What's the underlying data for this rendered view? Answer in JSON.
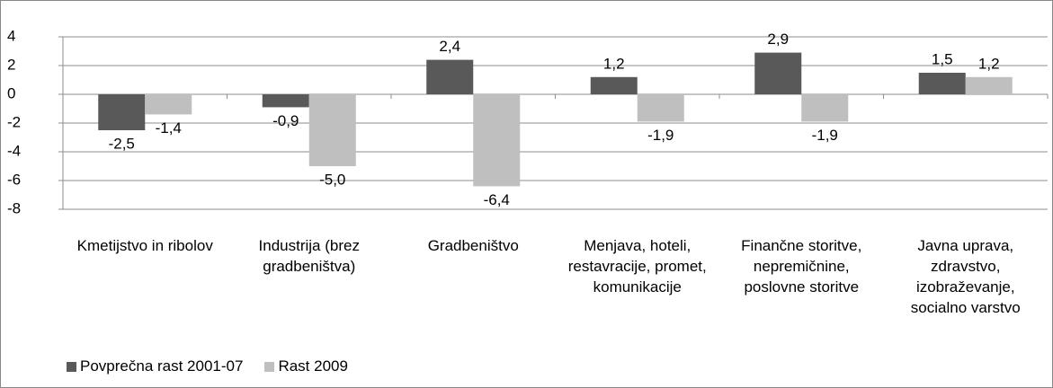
{
  "chart_data": {
    "type": "bar",
    "categories": [
      "Kmetijstvo in ribolov",
      "Industrija (brez gradbeništva)",
      "Gradbeništvo",
      "Menjava, hoteli, restavracije, promet, komunikacije",
      "Finančne storitve, nepremičnine, poslovne storitve",
      "Javna uprava, zdravstvo, izobraževanje, socialno varstvo"
    ],
    "series": [
      {
        "name": "Povprečna rast 2001-07",
        "color": "#595959",
        "values": [
          -2.5,
          -0.9,
          2.4,
          1.2,
          2.9,
          1.5
        ],
        "value_labels": [
          "-2,5",
          "-0,9",
          "2,4",
          "1,2",
          "2,9",
          "1,5"
        ]
      },
      {
        "name": "Rast 2009",
        "color": "#bfbfbf",
        "values": [
          -1.4,
          -5.0,
          -6.4,
          -1.9,
          -1.9,
          1.2
        ],
        "value_labels": [
          "-1,4",
          "-5,0",
          "-6,4",
          "-1,9",
          "-1,9",
          "1,2"
        ]
      }
    ],
    "ylim": [
      -8,
      4
    ],
    "yticks": [
      -8,
      -6,
      -4,
      -2,
      0,
      2,
      4
    ],
    "grid": true,
    "legend": "bottom-left"
  }
}
